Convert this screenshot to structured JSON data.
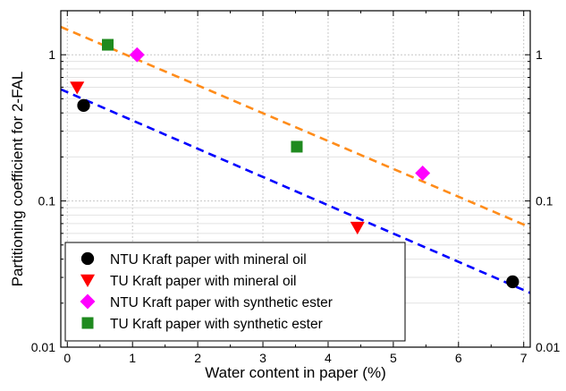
{
  "chart_data": {
    "type": "scatter",
    "title": "",
    "xlabel": "Water content in paper (%)",
    "ylabel": "Partitioning coefficient for 2-FAL",
    "xlim": [
      -0.1,
      7.1
    ],
    "ylim": [
      0.01,
      2
    ],
    "yscale": "log",
    "xticks": [
      0,
      1,
      2,
      3,
      4,
      5,
      6,
      7
    ],
    "xtick_labels": [
      "0",
      "1",
      "2",
      "3",
      "4",
      "5",
      "6",
      "7"
    ],
    "yticks": [
      0.01,
      0.1,
      1
    ],
    "ytick_labels": [
      "0.01",
      "0.1",
      "1"
    ],
    "right_ytick_labels": [
      "0.01",
      "0.1",
      "1"
    ],
    "grid": true,
    "legend_position": "bottom-left",
    "series": [
      {
        "name": "NTU Kraft paper with mineral oil",
        "marker": "circle",
        "color": "#000000",
        "x": [
          0.25,
          6.83
        ],
        "y": [
          0.45,
          0.028
        ]
      },
      {
        "name": "TU Kraft paper with mineral oil",
        "marker": "triangle-down",
        "color": "#ff0000",
        "x": [
          0.15,
          4.45
        ],
        "y": [
          0.6,
          0.066
        ]
      },
      {
        "name": "NTU Kraft paper with synthetic ester",
        "marker": "diamond",
        "color": "#ff00ff",
        "x": [
          1.07,
          5.45
        ],
        "y": [
          1.0,
          0.155
        ]
      },
      {
        "name": "TU Kraft paper with synthetic ester",
        "marker": "square",
        "color": "#1f8a1f",
        "x": [
          0.62,
          3.52
        ],
        "y": [
          1.17,
          0.235
        ]
      }
    ],
    "fit_lines": [
      {
        "color": "#0000ff",
        "style": "dashed",
        "x": [
          -0.1,
          7.1
        ],
        "y": [
          0.58,
          0.0235
        ]
      },
      {
        "color": "#ff8c1a",
        "style": "dashed",
        "x": [
          -0.1,
          7.1
        ],
        "y": [
          1.55,
          0.066
        ]
      }
    ]
  }
}
